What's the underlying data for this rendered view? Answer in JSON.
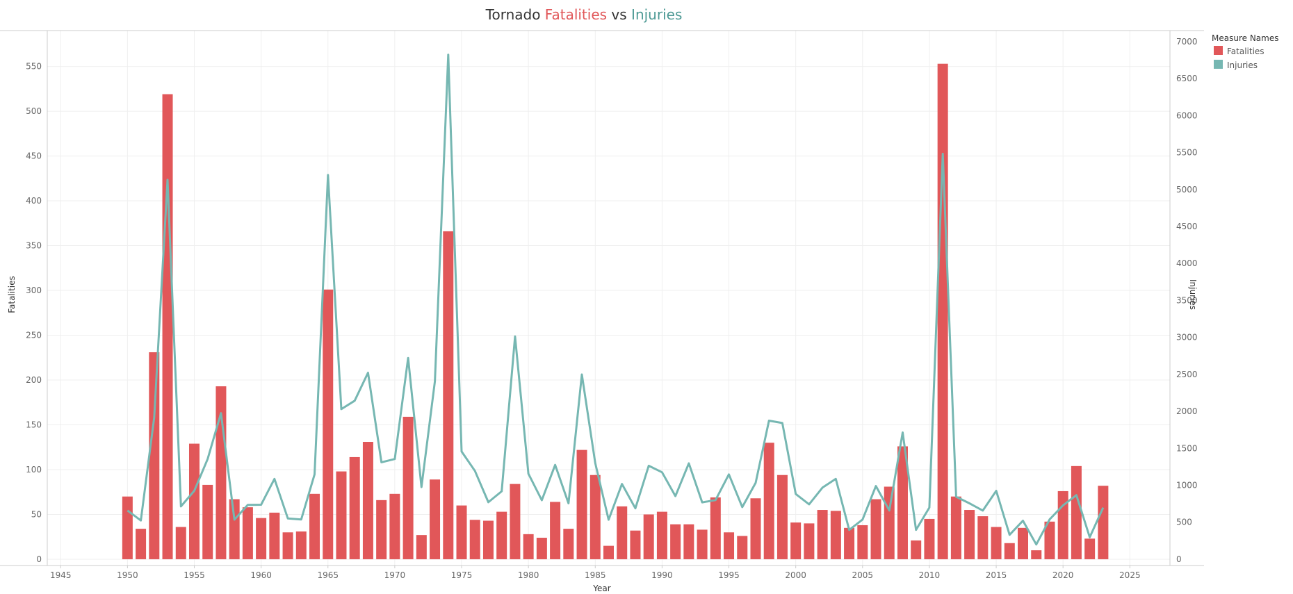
{
  "title": {
    "part1": "Tornado ",
    "part2": "Fatalities",
    "part3": " vs ",
    "part4": "Injuries"
  },
  "colors": {
    "fatalities": "#e15759",
    "injuries": "#76b7b2",
    "title_injuries": "#4e9a95",
    "text": "#333333",
    "grid": "#efefef",
    "axis": "#cccccc"
  },
  "legend": {
    "title": "Measure Names",
    "items": [
      {
        "label": "Fatalities",
        "color": "#e15759"
      },
      {
        "label": "Injuries",
        "color": "#76b7b2"
      }
    ]
  },
  "chart_data": {
    "type": "bar+line",
    "title": "Tornado Fatalities vs Injuries",
    "xlabel": "Year",
    "ylabel": "Fatalities",
    "y2label": "Injuries",
    "xlim": [
      1944,
      2028
    ],
    "ylim": [
      -7,
      590
    ],
    "y2lim": [
      -85,
      7150
    ],
    "x_ticks": [
      1945,
      1950,
      1955,
      1960,
      1965,
      1970,
      1975,
      1980,
      1985,
      1990,
      1995,
      2000,
      2005,
      2010,
      2015,
      2020,
      2025
    ],
    "y_ticks": [
      0,
      50,
      100,
      150,
      200,
      250,
      300,
      350,
      400,
      450,
      500,
      550
    ],
    "y2_ticks": [
      0,
      500,
      1000,
      1500,
      2000,
      2500,
      3000,
      3500,
      4000,
      4500,
      5000,
      5500,
      6000,
      6500,
      7000
    ],
    "grid": true,
    "legend_position": "top-right",
    "x": [
      1950,
      1951,
      1952,
      1953,
      1954,
      1955,
      1956,
      1957,
      1958,
      1959,
      1960,
      1961,
      1962,
      1963,
      1964,
      1965,
      1966,
      1967,
      1968,
      1969,
      1970,
      1971,
      1972,
      1973,
      1974,
      1975,
      1976,
      1977,
      1978,
      1979,
      1980,
      1981,
      1982,
      1983,
      1984,
      1985,
      1986,
      1987,
      1988,
      1989,
      1990,
      1991,
      1992,
      1993,
      1994,
      1995,
      1996,
      1997,
      1998,
      1999,
      2000,
      2001,
      2002,
      2003,
      2004,
      2005,
      2006,
      2007,
      2008,
      2009,
      2010,
      2011,
      2012,
      2013,
      2014,
      2015,
      2016,
      2017,
      2018,
      2019,
      2020,
      2021,
      2022,
      2023
    ],
    "series": [
      {
        "name": "Fatalities",
        "type": "bar",
        "values": [
          70,
          34,
          231,
          519,
          36,
          129,
          83,
          193,
          67,
          58,
          46,
          52,
          30,
          31,
          73,
          301,
          98,
          114,
          131,
          66,
          73,
          159,
          27,
          89,
          366,
          60,
          44,
          43,
          53,
          84,
          28,
          24,
          64,
          34,
          122,
          94,
          15,
          59,
          32,
          50,
          53,
          39,
          39,
          33,
          69,
          30,
          26,
          68,
          130,
          94,
          41,
          40,
          55,
          54,
          35,
          38,
          67,
          81,
          126,
          21,
          45,
          553,
          70,
          55,
          48,
          36,
          18,
          35,
          10,
          42,
          76,
          104,
          23,
          82
        ]
      },
      {
        "name": "Injuries",
        "type": "line",
        "values": [
          659,
          524,
          1915,
          5131,
          715,
          926,
          1355,
          1976,
          535,
          734,
          737,
          1087,
          551,
          538,
          1148,
          5197,
          2030,
          2144,
          2522,
          1311,
          1355,
          2723,
          976,
          2406,
          6824,
          1457,
          1195,
          771,
          919,
          3014,
          1157,
          798,
          1276,
          756,
          2499,
          1299,
          534,
          1018,
          688,
          1264,
          1176,
          854,
          1297,
          769,
          800,
          1148,
          705,
          1033,
          1874,
          1842,
          882,
          743,
          968,
          1087,
          396,
          537,
          990,
          659,
          1714,
          397,
          699,
          5483,
          845,
          756,
          658,
          925,
          330,
          521,
          200,
          540,
          729,
          867,
          297,
          699
        ]
      }
    ]
  }
}
